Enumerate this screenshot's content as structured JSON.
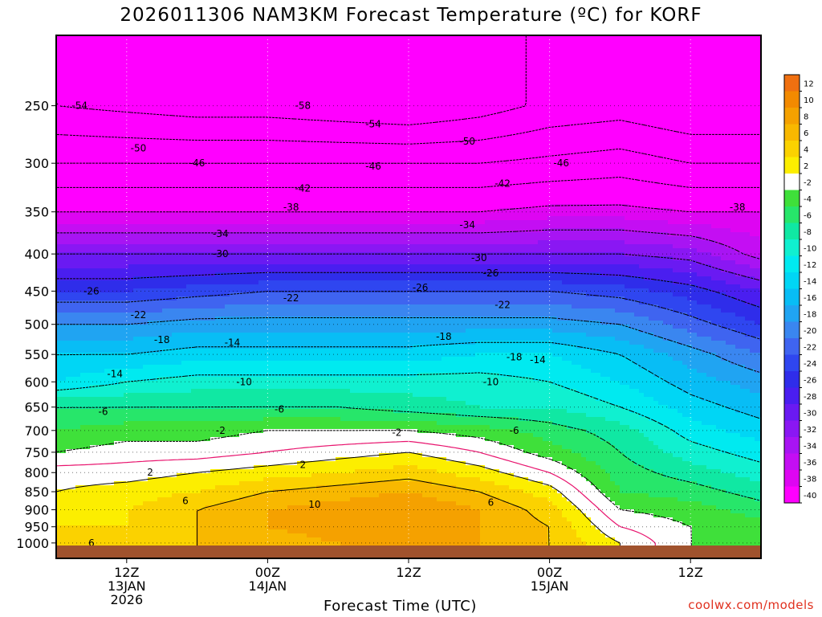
{
  "title": "2026011306 NAM3KM Forecast Temperature (ºC) for KORF",
  "watermark": "coolwx.com/models",
  "chart_data": {
    "type": "heatmap",
    "title": "2026011306 NAM3KM Forecast Temperature (ºC) for KORF",
    "xlabel": "Forecast Time (UTC)",
    "ylabel": "",
    "x_ticks": [
      {
        "lines": [
          "12Z",
          "13JAN",
          "2026"
        ]
      },
      {
        "lines": [
          "00Z",
          "14JAN"
        ]
      },
      {
        "lines": [
          "12Z"
        ]
      },
      {
        "lines": [
          "00Z",
          "15JAN"
        ]
      },
      {
        "lines": [
          "12Z"
        ]
      }
    ],
    "x_tick_hours": [
      6,
      18,
      30,
      42,
      54
    ],
    "x_range_hours": [
      0,
      60
    ],
    "y_ticks": [
      250,
      300,
      350,
      400,
      450,
      500,
      550,
      600,
      650,
      700,
      750,
      800,
      850,
      900,
      950,
      1000
    ],
    "y_range": [
      1050,
      200
    ],
    "y_scale": "log",
    "colorbar": {
      "labels": [
        "12",
        "10",
        "8",
        "6",
        "4",
        "2",
        "-2",
        "-4",
        "-6",
        "-8",
        "-10",
        "-12",
        "-14",
        "-16",
        "-18",
        "-20",
        "-22",
        "-24",
        "-26",
        "-28",
        "-30",
        "-32",
        "-34",
        "-36",
        "-38",
        "-40"
      ],
      "colors": [
        "#f07010",
        "#f38a00",
        "#f5a100",
        "#f8b800",
        "#fbd200",
        "#fcee00",
        "#ffffff",
        "#3fe03a",
        "#27e66a",
        "#10e8a3",
        "#10f0d0",
        "#00eaf0",
        "#00d6f5",
        "#08bdf5",
        "#20a4f2",
        "#3a86f0",
        "#3f64f0",
        "#2f46f0",
        "#2f2dea",
        "#4a1ef0",
        "#6a1af2",
        "#8a17f3",
        "#a814f3",
        "#c40ef3",
        "#de05f2",
        "#ff00ff"
      ]
    },
    "levels_hpa": [
      1000,
      950,
      900,
      850,
      800,
      750,
      700,
      650,
      600,
      550,
      500,
      450,
      400,
      350,
      300,
      250
    ],
    "forecast_hours": [
      0,
      6,
      12,
      18,
      24,
      30,
      36,
      42,
      48,
      54,
      60
    ],
    "temperature_c": [
      [
        5,
        5,
        6,
        7,
        8,
        9,
        8,
        6,
        2,
        -2,
        -3
      ],
      [
        4,
        4,
        6,
        8,
        9,
        10,
        8,
        6,
        0,
        -2,
        -3
      ],
      [
        3,
        4,
        6,
        8,
        9,
        10,
        8,
        5,
        -2,
        -3,
        -5
      ],
      [
        2,
        3,
        4,
        6,
        7,
        8,
        6,
        3,
        -4,
        -5,
        -7
      ],
      [
        1,
        1,
        2,
        3,
        4,
        5,
        3,
        0,
        -5,
        -7,
        -9
      ],
      [
        -2,
        -1,
        -1,
        0,
        1,
        2,
        0,
        -3,
        -6,
        -9,
        -11
      ],
      [
        -4,
        -3,
        -3,
        -2,
        -2,
        -2,
        -3,
        -5,
        -7,
        -11,
        -13
      ],
      [
        -6,
        -6,
        -6,
        -6,
        -6,
        -7,
        -8,
        -8,
        -10,
        -13,
        -15
      ],
      [
        -12,
        -10,
        -9,
        -9,
        -9,
        -9,
        -9,
        -10,
        -12,
        -15,
        -17
      ],
      [
        -14,
        -14,
        -13,
        -13,
        -13,
        -13,
        -12,
        -12,
        -14,
        -17,
        -20
      ],
      [
        -18,
        -18,
        -17,
        -17,
        -17,
        -17,
        -17,
        -17,
        -18,
        -21,
        -24
      ],
      [
        -24,
        -24,
        -23,
        -22,
        -22,
        -22,
        -22,
        -22,
        -23,
        -25,
        -28
      ],
      [
        -30,
        -30,
        -30,
        -30,
        -30,
        -30,
        -30,
        -30,
        -30,
        -31,
        -35
      ],
      [
        -38,
        -38,
        -38,
        -38,
        -38,
        -38,
        -38,
        -37,
        -37,
        -38,
        -38
      ],
      [
        -46,
        -46,
        -46,
        -46,
        -46,
        -46,
        -46,
        -45,
        -44,
        -46,
        -46
      ],
      [
        -54,
        -55,
        -56,
        -56,
        -57,
        -58,
        -56,
        -53,
        -52,
        -54,
        -54
      ]
    ],
    "contour_labels": [
      "-54",
      "-58",
      "-54",
      "-50",
      "-50",
      "-46",
      "-46",
      "-46",
      "-42",
      "-42",
      "-38",
      "-38",
      "-34",
      "-34",
      "-30",
      "-30",
      "-26",
      "-26",
      "-26",
      "-22",
      "-22",
      "-22",
      "-18",
      "-18",
      "-18",
      "-14",
      "-14",
      "-14",
      "-10",
      "-10",
      "-6",
      "-6",
      "-6",
      "-2",
      "-2",
      "2",
      "2",
      "6",
      "6",
      "6",
      "10"
    ]
  }
}
